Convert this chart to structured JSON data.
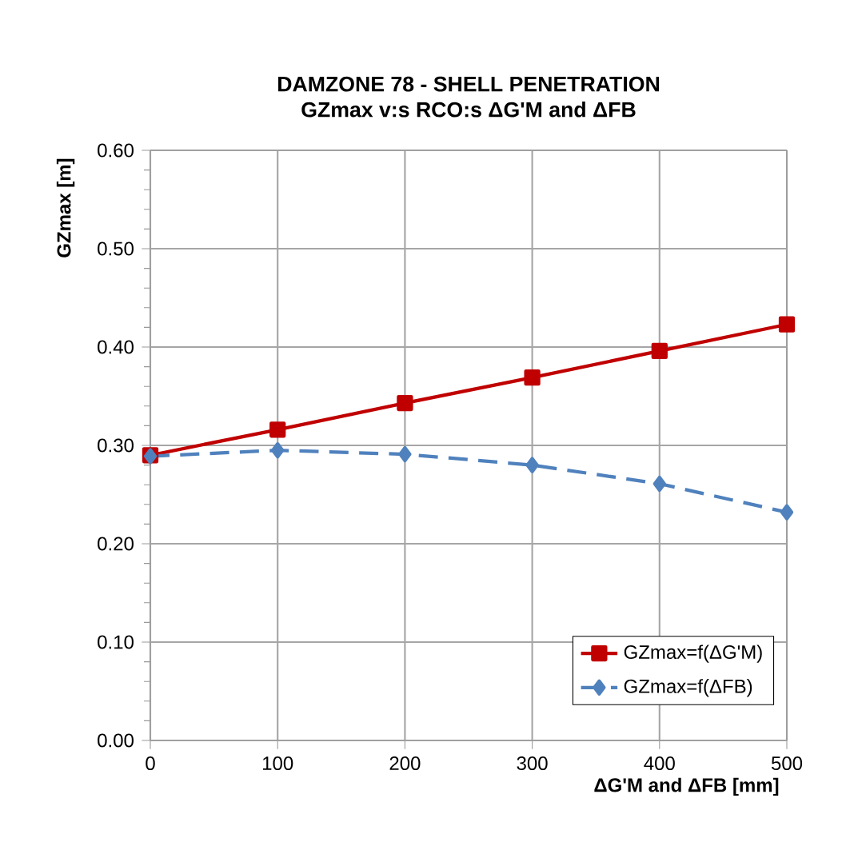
{
  "chart_data": {
    "type": "line",
    "title": "DAMZONE 78 - SHELL PENETRATION",
    "subtitle": "GZmax v:s RCO:s ΔG'M and ΔFB",
    "xlabel": "ΔG'M  and ΔFB [mm]",
    "ylabel": "GZmax [m]",
    "x": [
      0,
      100,
      200,
      300,
      400,
      500
    ],
    "series": [
      {
        "name": "GZmax=f(ΔG'M)",
        "color": "#c00000",
        "marker": "square",
        "line_style": "solid",
        "values": [
          0.29,
          0.316,
          0.343,
          0.369,
          0.396,
          0.423
        ]
      },
      {
        "name": "GZmax=f(ΔFB)",
        "color": "#4f81bd",
        "marker": "diamond",
        "line_style": "dashed",
        "values": [
          0.289,
          0.295,
          0.291,
          0.28,
          0.261,
          0.232
        ]
      }
    ],
    "xlim": [
      0,
      500
    ],
    "ylim": [
      0,
      0.6
    ],
    "xticks": [
      0,
      100,
      200,
      300,
      400,
      500
    ],
    "yticks": [
      {
        "value": 0,
        "label": "0.00"
      },
      {
        "value": 0.1,
        "label": "0.10"
      },
      {
        "value": 0.2,
        "label": "0.20"
      },
      {
        "value": 0.3,
        "label": "0.30"
      },
      {
        "value": 0.4,
        "label": "0.40"
      },
      {
        "value": 0.5,
        "label": "0.50"
      },
      {
        "value": 0.6,
        "label": "0.60"
      }
    ],
    "grid": true,
    "legend": "bottom right"
  }
}
